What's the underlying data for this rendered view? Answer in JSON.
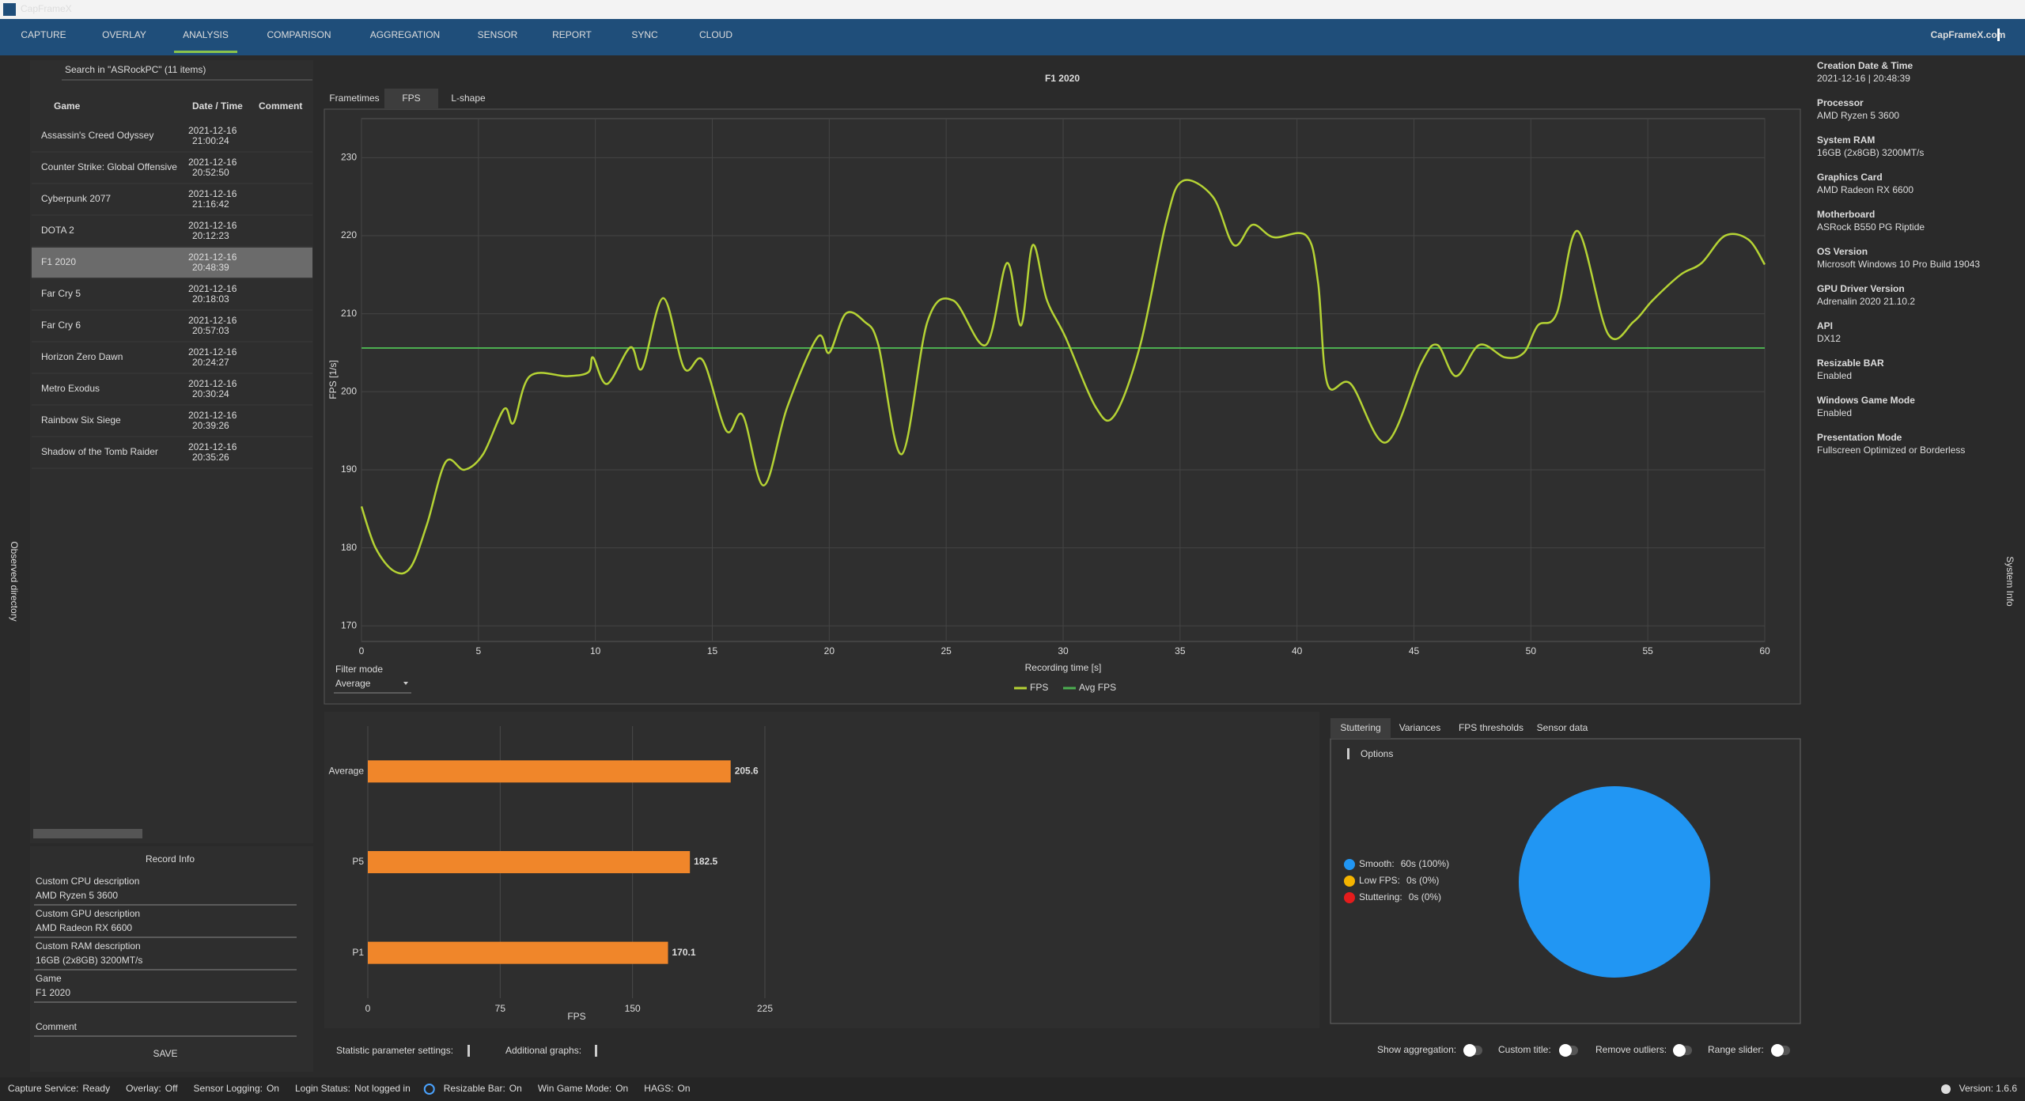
{
  "app": {
    "title": "CapFrameX",
    "nav": [
      "CAPTURE",
      "OVERLAY",
      "ANALYSIS",
      "COMPARISON",
      "AGGREGATION",
      "SENSOR",
      "REPORT",
      "SYNC",
      "CLOUD"
    ],
    "active": 2,
    "site": "CapFrameX.com"
  },
  "left": {
    "search": "Search in \"ASRockPC\" (11 items)",
    "columns": [
      "Game",
      "Date / Time",
      "Comment"
    ],
    "selected": 4,
    "side_label": "Observed directory",
    "rows": [
      {
        "game": "Assassin's Creed Odyssey",
        "date": "2021-12-16",
        "time": "21:00:24"
      },
      {
        "game": "Counter Strike: Global Offensive",
        "date": "2021-12-16",
        "time": "20:52:50"
      },
      {
        "game": "Cyberpunk 2077",
        "date": "2021-12-16",
        "time": "21:16:42"
      },
      {
        "game": "DOTA 2",
        "date": "2021-12-16",
        "time": "20:12:23"
      },
      {
        "game": "F1 2020",
        "date": "2021-12-16",
        "time": "20:48:39"
      },
      {
        "game": "Far Cry 5",
        "date": "2021-12-16",
        "time": "20:18:03"
      },
      {
        "game": "Far Cry 6",
        "date": "2021-12-16",
        "time": "20:57:03"
      },
      {
        "game": "Horizon Zero Dawn",
        "date": "2021-12-16",
        "time": "20:24:27"
      },
      {
        "game": "Metro Exodus",
        "date": "2021-12-16",
        "time": "20:30:24"
      },
      {
        "game": "Rainbow Six Siege",
        "date": "2021-12-16",
        "time": "20:39:26"
      },
      {
        "game": "Shadow of the Tomb Raider",
        "date": "2021-12-16",
        "time": "20:35:26"
      }
    ]
  },
  "record_info": {
    "title": "Record Info",
    "fields": [
      {
        "label": "Custom CPU description",
        "value": "AMD Ryzen 5 3600"
      },
      {
        "label": "Custom GPU description",
        "value": "AMD Radeon RX 6600"
      },
      {
        "label": "Custom RAM description",
        "value": "16GB (2x8GB) 3200MT/s"
      },
      {
        "label": "Game",
        "value": "F1 2020"
      }
    ],
    "comment": "Comment",
    "save": "SAVE"
  },
  "chart_tabs": [
    "Frametimes",
    "FPS",
    "L-shape"
  ],
  "chart_tab_active": 1,
  "filter": {
    "label": "Filter mode",
    "value": "Average"
  },
  "stutter_tabs": [
    "Stuttering",
    "Variances",
    "FPS thresholds",
    "Sensor data"
  ],
  "stutter_tab_active": 0,
  "options": "Options",
  "bottom": {
    "stat": "Statistic parameter settings:",
    "graphs": "Additional graphs:",
    "toggles": [
      "Show aggregation:",
      "Custom title:",
      "Remove outliers:",
      "Range slider:"
    ]
  },
  "system_info": {
    "side_label": "System Info",
    "items": [
      {
        "label": "Creation Date & Time",
        "value": "2021-12-16  |  20:48:39"
      },
      {
        "label": "Processor",
        "value": "AMD Ryzen 5 3600"
      },
      {
        "label": "System RAM",
        "value": "16GB (2x8GB) 3200MT/s"
      },
      {
        "label": "Graphics Card",
        "value": "AMD Radeon RX 6600"
      },
      {
        "label": "Motherboard",
        "value": "ASRock B550 PG Riptide"
      },
      {
        "label": "OS Version",
        "value": "Microsoft Windows 10 Pro Build 19043"
      },
      {
        "label": "GPU Driver Version",
        "value": "Adrenalin 2020 21.10.2"
      },
      {
        "label": "API",
        "value": "DX12"
      },
      {
        "label": "Resizable BAR",
        "value": "Enabled"
      },
      {
        "label": "Windows Game Mode",
        "value": "Enabled"
      },
      {
        "label": "Presentation Mode",
        "value": "Fullscreen Optimized or Borderless"
      }
    ]
  },
  "status": {
    "items": [
      {
        "label": "Capture Service:",
        "value": "Ready",
        "color": "#4caf50"
      },
      {
        "label": "Overlay:",
        "value": "Off",
        "color": "#e53935"
      },
      {
        "label": "Sensor Logging:",
        "value": "On",
        "color": "#4caf50"
      },
      {
        "label": "Login Status:",
        "value": "Not logged in",
        "color": "#e53935"
      },
      {
        "label": "Resizable Bar:",
        "value": "On",
        "color": "#4caf50"
      },
      {
        "label": "Win Game Mode:",
        "value": "On",
        "color": "#4caf50"
      },
      {
        "label": "HAGS:",
        "value": "On",
        "color": "#4caf50"
      }
    ],
    "version": "Version: 1.6.6"
  },
  "chart_data": [
    {
      "type": "line",
      "title": "F1 2020",
      "x_label": "Recording time [s]",
      "y_label": "FPS [1/s]",
      "x": [
        0,
        0.6,
        1.4,
        2.1,
        2.8,
        3.6,
        4.4,
        5.2,
        6.1,
        6.5,
        7.2,
        8.8,
        9.7,
        9.9,
        10.5,
        11.5,
        12.0,
        12.9,
        13.8,
        14.6,
        15.6,
        16.3,
        17.2,
        18.2,
        19.5,
        20.0,
        20.7,
        21.5,
        22.1,
        23.1,
        24.2,
        25.3,
        26.7,
        27.6,
        28.2,
        28.7,
        29.3,
        30.1,
        31.4,
        32.2,
        33.3,
        34.4,
        35.1,
        36.4,
        37.3,
        38.1,
        39.0,
        40.4,
        40.9,
        41.3,
        42.3,
        43.8,
        45.3,
        46.0,
        46.8,
        47.8,
        48.9,
        49.7,
        50.3,
        51.1,
        52.0,
        53.3,
        54.4,
        55.2,
        56.4,
        57.3,
        58.3,
        59.3,
        60.0
      ],
      "series": [
        {
          "name": "FPS",
          "color": "#b5d334",
          "values": [
            185.3,
            180,
            177,
            177.5,
            183,
            191,
            190,
            192,
            197.8,
            196,
            202,
            202,
            202.5,
            204.4,
            201,
            205.7,
            203,
            212,
            203,
            204,
            195,
            197,
            188,
            198,
            207,
            205,
            210,
            209,
            206,
            192,
            209,
            211.7,
            206,
            216.5,
            208.5,
            218.8,
            211.8,
            207,
            198,
            197,
            206,
            221.7,
            227,
            225,
            218.8,
            221.4,
            219.8,
            220,
            214,
            201,
            201,
            193.5,
            203.6,
            206,
            202,
            206,
            204.4,
            205,
            208.5,
            210,
            220.6,
            207.4,
            209,
            211.7,
            215,
            216.5,
            220,
            219.5,
            216.3
          ]
        }
      ],
      "reference_line": {
        "name": "Avg FPS",
        "value": 205.6,
        "color": "#4caf50"
      },
      "xlim": [
        0,
        60
      ],
      "xticks": [
        0,
        5,
        10,
        15,
        20,
        25,
        30,
        35,
        40,
        45,
        50,
        55,
        60
      ],
      "ylim": [
        168,
        235
      ],
      "yticks": [
        170,
        180,
        190,
        200,
        210,
        220,
        230
      ],
      "grid": true
    },
    {
      "type": "bar",
      "orientation": "horizontal",
      "categories": [
        "Average",
        "P5",
        "P1"
      ],
      "values": [
        205.6,
        182.5,
        170.1
      ],
      "color": "#f0862a",
      "xlim": [
        0,
        225
      ],
      "xticks": [
        0,
        75,
        150,
        225
      ],
      "x_label": "FPS",
      "grid": true
    },
    {
      "type": "pie",
      "categories": [
        "Smooth:",
        "Low FPS:",
        "Stuttering:"
      ],
      "values": [
        100,
        0,
        0
      ],
      "value_labels": [
        "60s (100%)",
        "0s (0%)",
        "0s (0%)"
      ],
      "colors": [
        "#2196f3",
        "#f5b400",
        "#e51c1c"
      ]
    }
  ]
}
